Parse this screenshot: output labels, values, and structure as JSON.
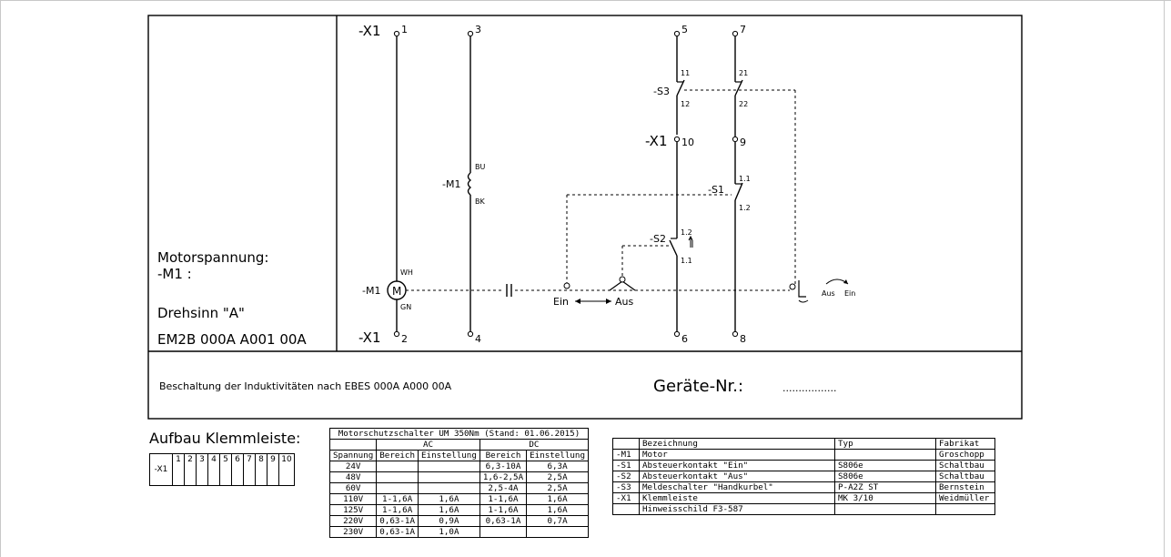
{
  "left_panel": {
    "motor_voltage_label": "Motorspannung:",
    "motor_ref": "-M1 :",
    "rotation": "Drehsinn \"A\"",
    "part_number": "EM2B 000A A001 00A"
  },
  "note": {
    "wiring_note": "Beschaltung der Induktivitäten nach EBES 000A A000 00A",
    "device_no_label": "Geräte-Nr.:",
    "device_no_value": "................."
  },
  "schematic": {
    "terminal_block": "-X1",
    "terminals": [
      "1",
      "2",
      "3",
      "4",
      "5",
      "6",
      "7",
      "8",
      "9",
      "10"
    ],
    "motor": {
      "ref": "-M1",
      "symbol": "M",
      "wire_top": "WH",
      "wire_bottom": "GN"
    },
    "brake_coil": {
      "ref": "-M1",
      "wire_top": "BU",
      "wire_bottom": "BK"
    },
    "s3": {
      "ref": "-S3",
      "contacts": [
        "11",
        "12",
        "21",
        "22"
      ]
    },
    "s1": {
      "ref": "-S1",
      "contacts": [
        "1.1",
        "1.2"
      ]
    },
    "s2": {
      "ref": "-S2",
      "contacts": [
        "1.2",
        "1.1"
      ]
    },
    "switch_labels": {
      "ein": "Ein",
      "aus": "Aus"
    },
    "crank_labels": {
      "aus": "Aus",
      "ein": "Ein"
    }
  },
  "terminal_strip": {
    "title": "Aufbau Klemmleiste:",
    "name": "-X1",
    "cells": [
      "1",
      "2",
      "3",
      "4",
      "5",
      "6",
      "7",
      "8",
      "9",
      "10"
    ]
  },
  "motor_protection_table": {
    "title": "Motorschutzschalter UM 350Nm (Stand: 01.06.2015)",
    "group_ac": "AC",
    "group_dc": "DC",
    "headers": [
      "Spannung",
      "Bereich",
      "Einstellung",
      "Bereich",
      "Einstellung"
    ],
    "rows": [
      [
        "24V",
        "",
        "",
        "6,3-10A",
        "6,3A"
      ],
      [
        "48V",
        "",
        "",
        "1,6-2,5A",
        "2,5A"
      ],
      [
        "60V",
        "",
        "",
        "2,5-4A",
        "2,5A"
      ],
      [
        "110V",
        "1-1,6A",
        "1,6A",
        "1-1,6A",
        "1,6A"
      ],
      [
        "125V",
        "1-1,6A",
        "1,6A",
        "1-1,6A",
        "1,6A"
      ],
      [
        "220V",
        "0,63-1A",
        "0,9A",
        "0,63-1A",
        "0,7A"
      ],
      [
        "230V",
        "0,63-1A",
        "1,0A",
        "",
        ""
      ]
    ]
  },
  "parts_table": {
    "headers": [
      "",
      "Bezeichnung",
      "Typ",
      "Fabrikat"
    ],
    "rows": [
      [
        "-M1",
        "Motor",
        "",
        "Groschopp"
      ],
      [
        "-S1",
        "Absteuerkontakt \"Ein\"",
        "S806e",
        "Schaltbau"
      ],
      [
        "-S2",
        "Absteuerkontakt \"Aus\"",
        "S806e",
        "Schaltbau"
      ],
      [
        "-S3",
        "Meldeschalter \"Handkurbel\"",
        "P-A2Z ST",
        "Bernstein"
      ],
      [
        "-X1",
        "Klemmleiste",
        "MK 3/10",
        "Weidmüller"
      ],
      [
        "",
        "Hinweisschild F3-587",
        "",
        ""
      ]
    ]
  }
}
